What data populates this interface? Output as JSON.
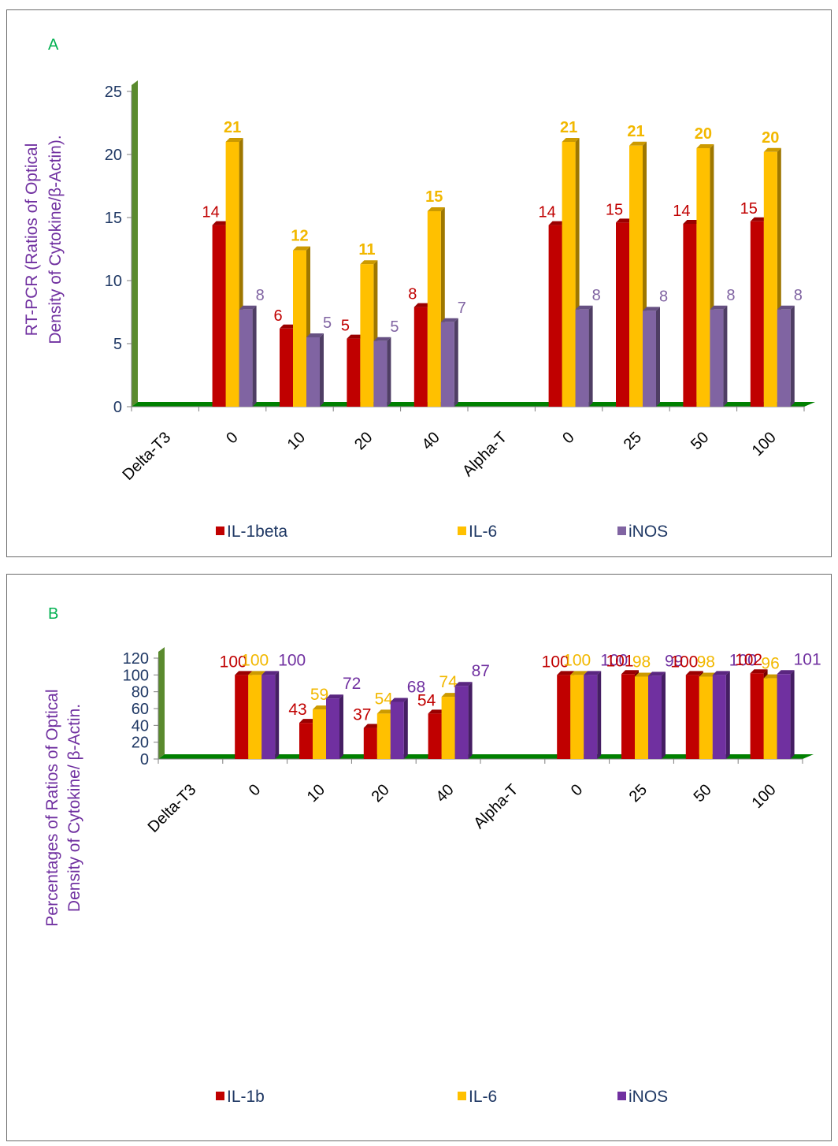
{
  "chart_data": [
    {
      "type": "bar",
      "panel_label": "A",
      "ylabel_lines": [
        "RT-PCR  (Ratios of Optical",
        "Density of Cytokine/β-Actin)."
      ],
      "ylim": [
        0,
        25
      ],
      "yticks": [
        0,
        5,
        10,
        15,
        20,
        25
      ],
      "categories": [
        "Delta-T3",
        "0",
        "10",
        "20",
        "40",
        "Alpha-T",
        "0",
        "25",
        "50",
        "100"
      ],
      "series": [
        {
          "name": "IL-1beta",
          "color": "#c00000",
          "values": [
            null,
            14.4,
            6.2,
            5.4,
            7.9,
            null,
            14.4,
            14.6,
            14.5,
            14.7
          ],
          "labels": [
            "",
            "14",
            "6",
            "5",
            "8",
            "",
            "14",
            "15",
            "14",
            "15"
          ],
          "label_bold": false
        },
        {
          "name": "IL-6",
          "color": "#ffc000",
          "values": [
            null,
            21.0,
            12.4,
            11.3,
            15.5,
            null,
            21.0,
            20.7,
            20.5,
            20.2
          ],
          "labels": [
            "",
            "21",
            "12",
            "11",
            "15",
            "",
            "21",
            "21",
            "20",
            "20"
          ],
          "label_bold": true
        },
        {
          "name": "iNOS",
          "color": "#8064a2",
          "values": [
            null,
            7.7,
            5.5,
            5.2,
            6.7,
            null,
            7.7,
            7.6,
            7.7,
            7.7
          ],
          "labels": [
            "",
            "8",
            "5",
            "5",
            "7",
            "",
            "8",
            "8",
            "8",
            "8"
          ],
          "label_bold": false
        }
      ],
      "legend_position": "bottom",
      "grid": false
    },
    {
      "type": "bar",
      "panel_label": "B",
      "ylabel_lines": [
        "Percentages of Ratios of Optical",
        "Density of Cytokine/ β-Actin."
      ],
      "ylim": [
        0,
        120
      ],
      "yticks": [
        0,
        20,
        40,
        60,
        80,
        100,
        120
      ],
      "categories": [
        "Delta-T3",
        "0",
        "10",
        "20",
        "40",
        "Alpha-T",
        "0",
        "25",
        "50",
        "100"
      ],
      "series": [
        {
          "name": "IL-1b",
          "color": "#c00000",
          "values": [
            null,
            100,
            43,
            37,
            54,
            null,
            100,
            101,
            100,
            102
          ],
          "labels": [
            "",
            "100",
            "43",
            "37",
            "54",
            "",
            "100",
            "101",
            "100",
            "102"
          ],
          "label_bold": false
        },
        {
          "name": "IL-6",
          "color": "#ffc000",
          "values": [
            null,
            100,
            59,
            54,
            74,
            null,
            100,
            98,
            98,
            96
          ],
          "labels": [
            "",
            "100",
            "59",
            "54",
            "74",
            "",
            "100",
            "98",
            "98",
            "96"
          ],
          "label_bold": false
        },
        {
          "name": "iNOS",
          "color": "#7030a0",
          "values": [
            null,
            100,
            72,
            68,
            87,
            null,
            100,
            99,
            100,
            101
          ],
          "labels": [
            "",
            "100",
            "72",
            "68",
            "87",
            "",
            "100",
            "99",
            "100",
            "101"
          ],
          "label_bold": false
        }
      ],
      "legend_position": "bottom",
      "grid": false
    }
  ],
  "colors": {
    "axis_text": "#1f3864",
    "ylabel_text": "#7030a0",
    "panel_label": "#00b050",
    "floor": "#008000",
    "wall": "#5a8a2e"
  }
}
